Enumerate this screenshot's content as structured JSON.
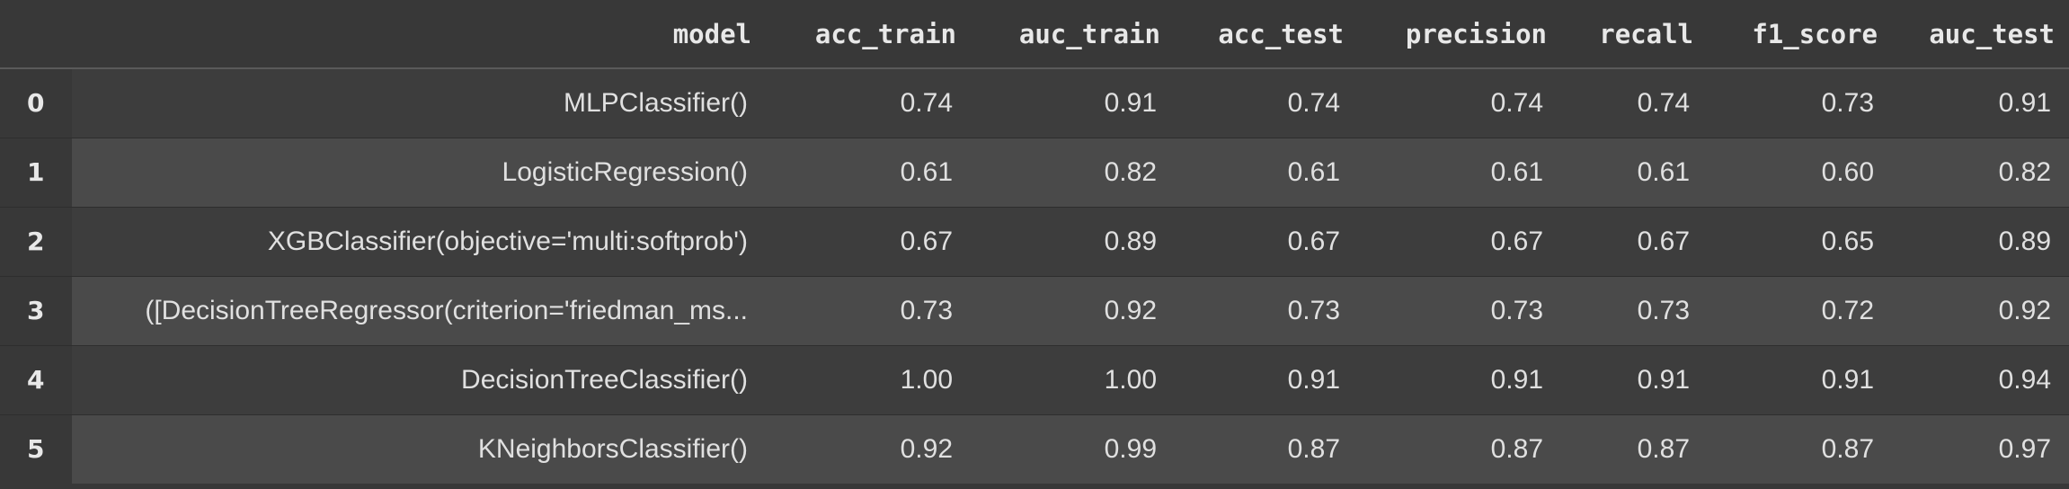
{
  "table": {
    "columns": [
      "",
      "model",
      "acc_train",
      "auc_train",
      "acc_test",
      "precision",
      "recall",
      "f1_score",
      "auc_test"
    ],
    "rows": [
      {
        "index": "0",
        "model": "MLPClassifier()",
        "acc_train": "0.74",
        "auc_train": "0.91",
        "acc_test": "0.74",
        "precision": "0.74",
        "recall": "0.74",
        "f1_score": "0.73",
        "auc_test": "0.91"
      },
      {
        "index": "1",
        "model": "LogisticRegression()",
        "acc_train": "0.61",
        "auc_train": "0.82",
        "acc_test": "0.61",
        "precision": "0.61",
        "recall": "0.61",
        "f1_score": "0.60",
        "auc_test": "0.82"
      },
      {
        "index": "2",
        "model": "XGBClassifier(objective='multi:softprob')",
        "acc_train": "0.67",
        "auc_train": "0.89",
        "acc_test": "0.67",
        "precision": "0.67",
        "recall": "0.67",
        "f1_score": "0.65",
        "auc_test": "0.89"
      },
      {
        "index": "3",
        "model": "([DecisionTreeRegressor(criterion='friedman_ms...",
        "acc_train": "0.73",
        "auc_train": "0.92",
        "acc_test": "0.73",
        "precision": "0.73",
        "recall": "0.73",
        "f1_score": "0.72",
        "auc_test": "0.92"
      },
      {
        "index": "4",
        "model": "DecisionTreeClassifier()",
        "acc_train": "1.00",
        "auc_train": "1.00",
        "acc_test": "0.91",
        "precision": "0.91",
        "recall": "0.91",
        "f1_score": "0.91",
        "auc_test": "0.94"
      },
      {
        "index": "5",
        "model": "KNeighborsClassifier()",
        "acc_train": "0.92",
        "auc_train": "0.99",
        "acc_test": "0.87",
        "precision": "0.87",
        "recall": "0.87",
        "f1_score": "0.87",
        "auc_test": "0.97"
      }
    ]
  }
}
